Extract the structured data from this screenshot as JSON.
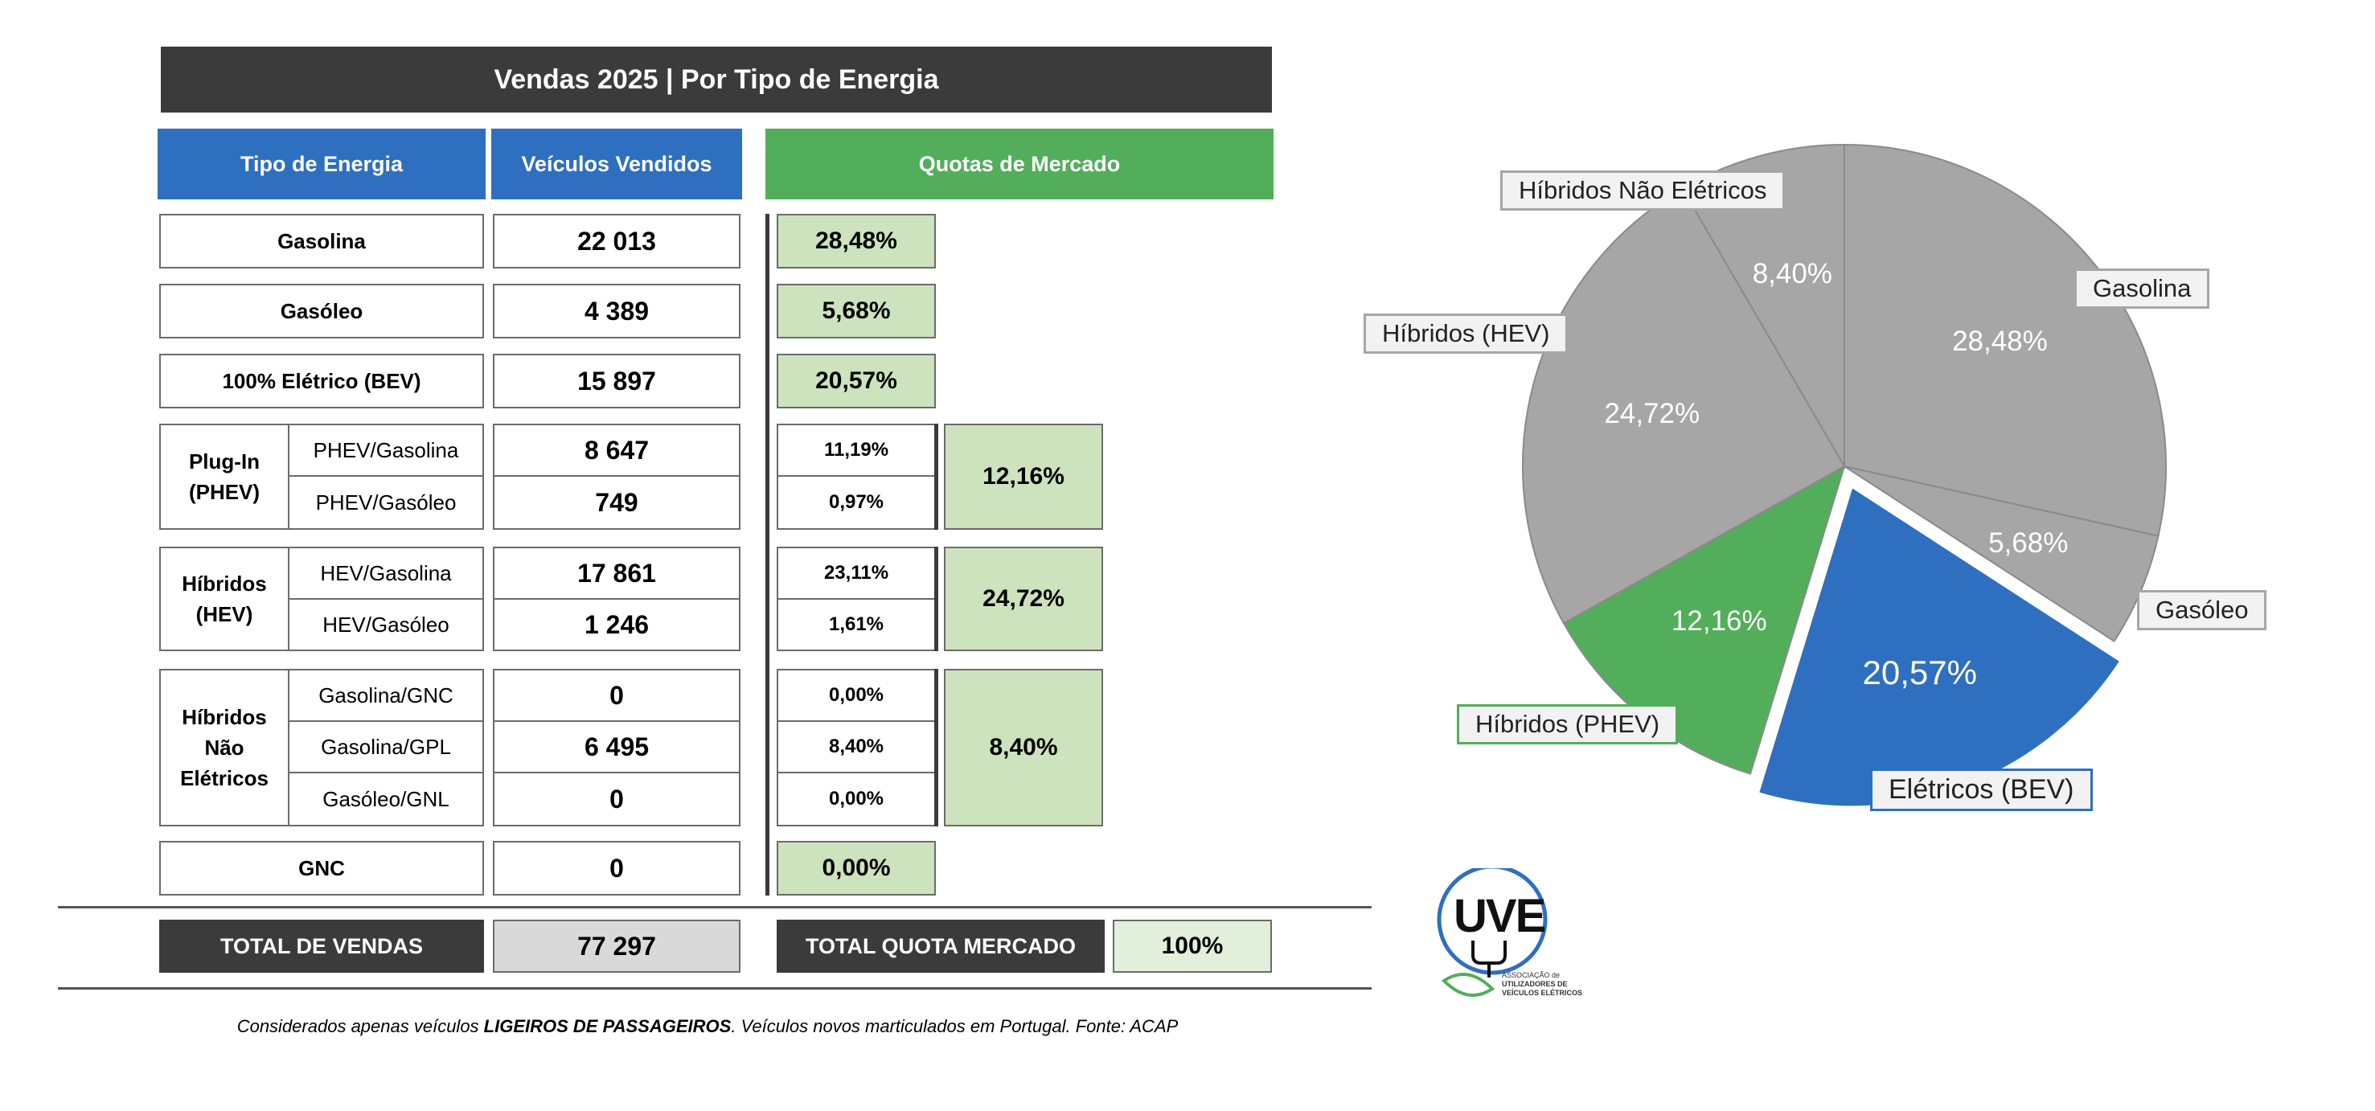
{
  "title": "Vendas 2025 | Por Tipo de Energia",
  "headers": {
    "tipo": "Tipo de Energia",
    "vendidos": "Veículos Vendidos",
    "quotas": "Quotas de Mercado"
  },
  "rows": {
    "gasolina": {
      "label": "Gasolina",
      "value": "22 013",
      "share": "28,48%"
    },
    "gasoleo": {
      "label": "Gasóleo",
      "value": "4 389",
      "share": "5,68%"
    },
    "bev": {
      "label": "100% Elétrico (BEV)",
      "value": "15 897",
      "share": "20,57%"
    },
    "phev": {
      "label_line1": "Plug-In",
      "label_line2": "(PHEV)",
      "total_share": "12,16%",
      "sub": [
        {
          "label": "PHEV/Gasolina",
          "value": "8 647",
          "share": "11,19%"
        },
        {
          "label": "PHEV/Gasóleo",
          "value": "749",
          "share": "0,97%"
        }
      ]
    },
    "hev": {
      "label_line1": "Híbridos",
      "label_line2": "(HEV)",
      "total_share": "24,72%",
      "sub": [
        {
          "label": "HEV/Gasolina",
          "value": "17 861",
          "share": "23,11%"
        },
        {
          "label": "HEV/Gasóleo",
          "value": "1 246",
          "share": "1,61%"
        }
      ]
    },
    "hne": {
      "label_line1": "Híbridos",
      "label_line2": "Não",
      "label_line3": "Elétricos",
      "total_share": "8,40%",
      "sub": [
        {
          "label": "Gasolina/GNC",
          "value": "0",
          "share": "0,00%"
        },
        {
          "label": "Gasolina/GPL",
          "value": "6 495",
          "share": "8,40%"
        },
        {
          "label": "Gasóleo/GNL",
          "value": "0",
          "share": "0,00%"
        }
      ]
    },
    "gnc": {
      "label": "GNC",
      "value": "0",
      "share": "0,00%"
    }
  },
  "totals": {
    "vendas_label": "TOTAL DE VENDAS",
    "vendas_value": "77 297",
    "quota_label": "TOTAL QUOTA MERCADO",
    "quota_value": "100%"
  },
  "note": {
    "part1": "Considerados apenas veículos ",
    "bold": "LIGEIROS DE PASSAGEIROS",
    "part2": ". Veículos novos marticulados em Portugal. Fonte: ACAP"
  },
  "logo": {
    "text": "UVE",
    "line1": "ASSOCIAÇÃO de",
    "line2": "UTILIZADORES DE",
    "line3": "VEÍCULOS ELÉTRICOS"
  },
  "chart_data": {
    "type": "pie",
    "slices": [
      {
        "name": "Gasolina",
        "value": 28.48,
        "label": "28,48%",
        "color": "#a6a6a6"
      },
      {
        "name": "Gasóleo",
        "value": 5.68,
        "label": "5,68%",
        "color": "#a6a6a6"
      },
      {
        "name": "Elétricos (BEV)",
        "value": 20.57,
        "label": "20,57%",
        "color": "#2f6fbf",
        "exploded": true
      },
      {
        "name": "Híbridos (PHEV)",
        "value": 12.16,
        "label": "12,16%",
        "color": "#52ae5a"
      },
      {
        "name": "Híbridos (HEV)",
        "value": 24.72,
        "label": "24,72%",
        "color": "#a6a6a6"
      },
      {
        "name": "Híbridos Não Elétricos",
        "value": 8.4,
        "label": "8,40%",
        "color": "#a6a6a6"
      }
    ]
  },
  "colors": {
    "blue": "#2f6fbf",
    "green": "#52ae5a",
    "gray": "#a6a6a6",
    "dark": "#3b3b3b",
    "light_green": "#cde3bd"
  }
}
